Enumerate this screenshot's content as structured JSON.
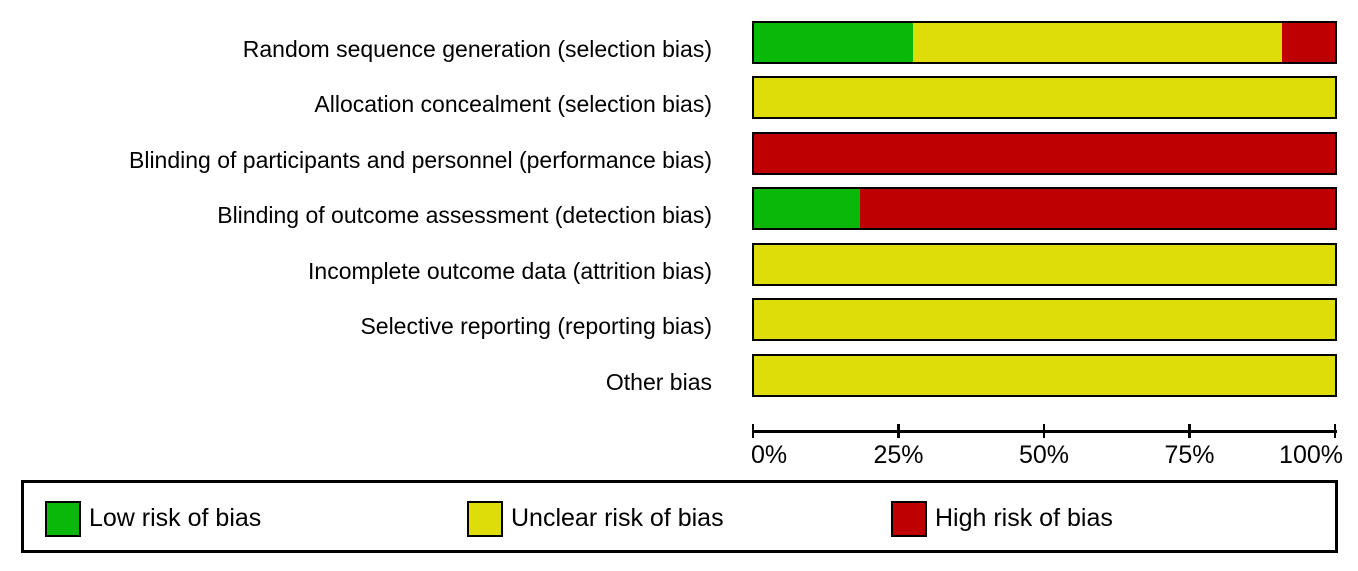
{
  "chart_data": {
    "type": "bar",
    "orientation": "horizontal_stacked",
    "categories": [
      "Random sequence generation (selection bias)",
      "Allocation concealment (selection bias)",
      "Blinding of participants and personnel (performance bias)",
      "Blinding of outcome assessment (detection bias)",
      "Incomplete outcome data (attrition bias)",
      "Selective reporting (reporting bias)",
      "Other bias"
    ],
    "series": [
      {
        "name": "Low risk of bias",
        "key": "low",
        "color": "#09b809",
        "values": [
          27.3,
          0,
          0,
          18.2,
          0,
          0,
          0
        ]
      },
      {
        "name": "Unclear risk of bias",
        "key": "unclear",
        "color": "#dedc09",
        "values": [
          63.6,
          100,
          0,
          0,
          100,
          100,
          100
        ]
      },
      {
        "name": "High risk of bias",
        "key": "high",
        "color": "#bf0000",
        "values": [
          9.1,
          0,
          100,
          81.8,
          0,
          0,
          0
        ]
      }
    ],
    "xlim": [
      0,
      100
    ],
    "x_tick_values": [
      0,
      25,
      50,
      75,
      100
    ],
    "x_ticks": [
      "0%",
      "25%",
      "50%",
      "75%",
      "100%"
    ],
    "grid": false,
    "legend_position": "bottom",
    "bar_border_color": "#000000",
    "background_color": "#ffffff"
  }
}
